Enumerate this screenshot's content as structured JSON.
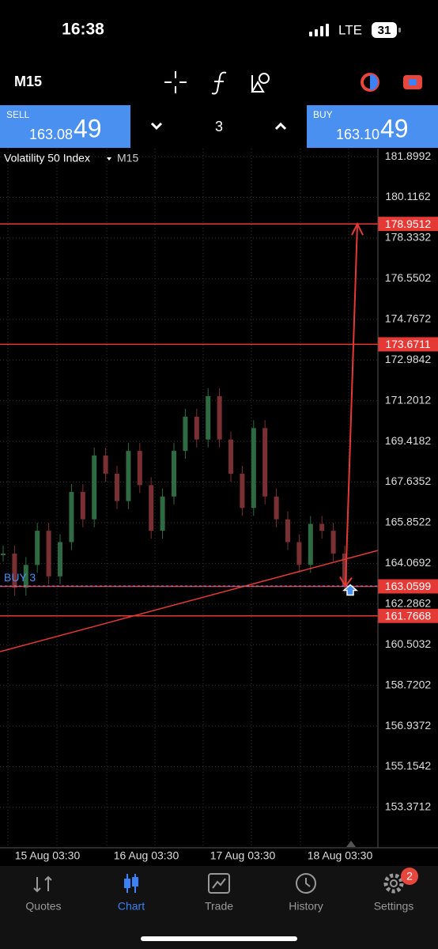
{
  "status_bar": {
    "time": "16:38",
    "network": "LTE",
    "battery": "31"
  },
  "toolbar": {
    "timeframe": "M15"
  },
  "trade_bar": {
    "sell": {
      "label": "SELL",
      "price_main": "163.08",
      "price_big": "49"
    },
    "volume": "3",
    "buy": {
      "label": "BUY",
      "price_main": "163.10",
      "price_big": "49"
    }
  },
  "chart": {
    "symbol": "Volatility 50 Index",
    "timeframe": "M15",
    "position_label": "BUY 3",
    "ylim": [
      151.6,
      182.25
    ],
    "price_ticks": [
      181.8992,
      180.1162,
      178.3332,
      176.5502,
      174.7672,
      172.9842,
      171.2012,
      169.4182,
      167.6352,
      165.8522,
      164.0692,
      162.2862,
      160.5032,
      158.7202,
      156.9372,
      155.1542,
      153.3712
    ],
    "levels": [
      178.9512,
      173.6711,
      163.0599,
      161.7668
    ],
    "x_labels": [
      "15 Aug 03:30",
      "16 Aug 03:30",
      "17 Aug 03:30",
      "18 Aug 03:30"
    ],
    "closes": [
      164.5,
      163.0,
      164.0,
      165.5,
      163.5,
      165.0,
      167.2,
      166.0,
      168.8,
      168.0,
      166.8,
      169.0,
      167.5,
      165.5,
      167.0,
      169.0,
      170.5,
      169.5,
      171.4,
      169.5,
      168.0,
      166.5,
      170.0,
      167.0,
      166.0,
      165.0,
      164.0,
      165.8,
      165.5,
      164.5,
      163.1
    ]
  },
  "tab_bar": {
    "tabs": [
      "Quotes",
      "Chart",
      "Trade",
      "History",
      "Settings"
    ],
    "badge": "2"
  }
}
